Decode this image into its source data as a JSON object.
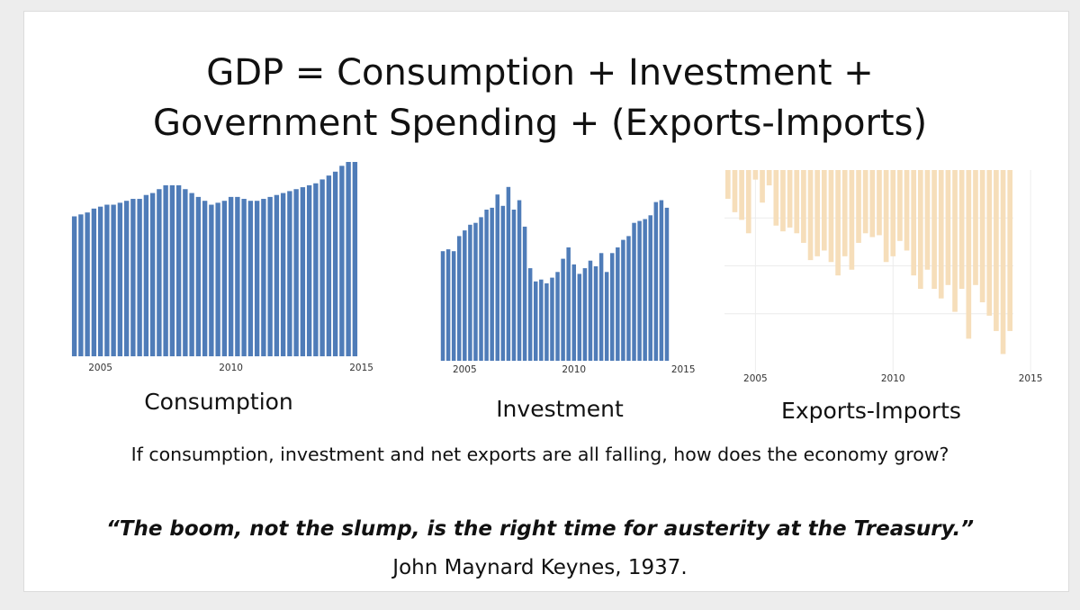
{
  "slide": {
    "title_line_1": "GDP = Consumption + Investment +",
    "title_line_2": "Government Spending + (Exports-Imports)",
    "question": "If consumption, investment and net exports are all falling, how does the economy grow?",
    "quote": "“The boom, not the slump, is the right time for austerity at the Treasury.”",
    "quote_author": "John Maynard Keynes, 1937."
  },
  "chart_data": [
    {
      "type": "bar",
      "title": "Consumption",
      "caption": "Consumption",
      "color": "#4f7cb8",
      "x_ticks": [
        "2005",
        "2010",
        "2015"
      ],
      "x_start": 2004.0,
      "x_step": 0.25,
      "ylim": [
        0,
        100
      ],
      "grid": false,
      "values": [
        72,
        73,
        74,
        76,
        77,
        78,
        78,
        79,
        80,
        81,
        81,
        83,
        84,
        86,
        88,
        88,
        88,
        86,
        84,
        82,
        80,
        78,
        79,
        80,
        82,
        82,
        81,
        80,
        80,
        81,
        82,
        83,
        84,
        85,
        86,
        87,
        88,
        89,
        91,
        93,
        95,
        98,
        100,
        100
      ]
    },
    {
      "type": "bar",
      "title": "Investment",
      "caption": "Investment",
      "color": "#4f7cb8",
      "x_ticks": [
        "2005",
        "2010",
        "2015"
      ],
      "x_start": 2004.0,
      "x_step": 0.25,
      "ylim": [
        0,
        100
      ],
      "grid": false,
      "values": [
        58,
        59,
        58,
        66,
        69,
        72,
        73,
        76,
        80,
        81,
        88,
        82,
        92,
        80,
        85,
        71,
        49,
        42,
        43,
        41,
        44,
        47,
        54,
        60,
        51,
        46,
        49,
        53,
        50,
        57,
        47,
        57,
        60,
        64,
        66,
        73,
        74,
        75,
        77,
        84,
        85,
        81
      ]
    },
    {
      "type": "bar",
      "title": "Exports-Imports",
      "caption": "Exports-Imports",
      "color": "#f6deba",
      "x_ticks": [
        "2005",
        "2010",
        "2015"
      ],
      "x_start": 2004.0,
      "x_step": 0.25,
      "ylim": [
        -100,
        0
      ],
      "grid": true,
      "values": [
        -15,
        -22,
        -26,
        -33,
        -5,
        -17,
        -8,
        -29,
        -32,
        -30,
        -33,
        -38,
        -47,
        -45,
        -42,
        -48,
        -55,
        -45,
        -52,
        -38,
        -33,
        -35,
        -34,
        -48,
        -45,
        -37,
        -42,
        -55,
        -62,
        -52,
        -62,
        -67,
        -60,
        -74,
        -62,
        -88,
        -60,
        -69,
        -76,
        -84,
        -96,
        -84
      ]
    }
  ]
}
